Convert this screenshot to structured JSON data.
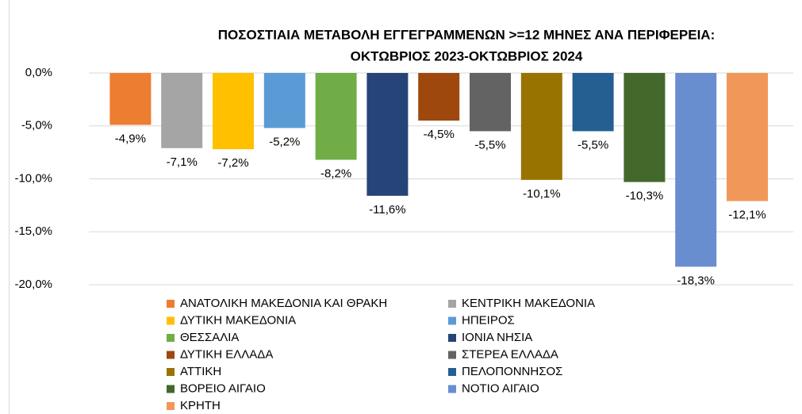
{
  "chart_data": {
    "type": "bar",
    "title": [
      "ΠΟΣΟΣΤΙΑΙΑ ΜΕΤΑΒΟΛΗ ΕΓΓΕΓΡΑΜΜΕΝΩΝ >=12 ΜΗΝΕΣ ΑΝΑ ΠΕΡΙΦΕΡΕΙΑ:",
      "ΟΚΤΩΒΡΙΟΣ 2023-ΟΚΤΩΒΡΙΟΣ 2024"
    ],
    "ylim": [
      -20,
      0
    ],
    "yticks": [
      {
        "value": 0,
        "label": "0,0%"
      },
      {
        "value": -5,
        "label": "-5,0%"
      },
      {
        "value": -10,
        "label": "-10,0%"
      },
      {
        "value": -15,
        "label": "-15,0%"
      },
      {
        "value": -20,
        "label": "-20,0%"
      }
    ],
    "grid": true,
    "legend": "bottom",
    "series": [
      {
        "name": "ΑΝΑΤΟΛΙΚΗ ΜΑΚΕΔΟΝΙΑ ΚΑΙ ΘΡΑΚΗ",
        "color": "#ED7D31",
        "values": [
          -4.9
        ],
        "value_labels": [
          "-4,9%"
        ]
      },
      {
        "name": "ΚΕΝΤΡΙΚΗ ΜΑΚΕΔΟΝΙΑ",
        "color": "#A5A5A5",
        "values": [
          -7.1
        ],
        "value_labels": [
          "-7,1%"
        ]
      },
      {
        "name": "ΔΥΤΙΚΗ ΜΑΚΕΔΟΝΙΑ",
        "color": "#FFC000",
        "values": [
          -7.2
        ],
        "value_labels": [
          "-7,2%"
        ]
      },
      {
        "name": "ΗΠΕΙΡΟΣ",
        "color": "#5B9BD5",
        "values": [
          -5.2
        ],
        "value_labels": [
          "-5,2%"
        ]
      },
      {
        "name": "ΘΕΣΣΑΛΙΑ",
        "color": "#70AD47",
        "values": [
          -8.2
        ],
        "value_labels": [
          "-8,2%"
        ]
      },
      {
        "name": "ΙΟΝΙΑ ΝΗΣΙΑ",
        "color": "#264478",
        "values": [
          -11.6
        ],
        "value_labels": [
          "-11,6%"
        ]
      },
      {
        "name": "ΔΥΤΙΚΗ ΕΛΛΑΔΑ",
        "color": "#9E480E",
        "values": [
          -4.5
        ],
        "value_labels": [
          "-4,5%"
        ]
      },
      {
        "name": "ΣΤΕΡΕΑ ΕΛΛΑΔΑ",
        "color": "#636363",
        "values": [
          -5.5
        ],
        "value_labels": [
          "-5,5%"
        ]
      },
      {
        "name": "ΑΤΤΙΚΗ",
        "color": "#997300",
        "values": [
          -10.1
        ],
        "value_labels": [
          "-10,1%"
        ]
      },
      {
        "name": "ΠΕΛΟΠΟΝΝΗΣΟΣ",
        "color": "#255E91",
        "values": [
          -5.5
        ],
        "value_labels": [
          "-5,5%"
        ]
      },
      {
        "name": "ΒΟΡΕΙΟ ΑΙΓΑΙΟ",
        "color": "#43682B",
        "values": [
          -10.3
        ],
        "value_labels": [
          "-10,3%"
        ]
      },
      {
        "name": "ΝΟΤΙΟ ΑΙΓΑΙΟ",
        "color": "#698ED0",
        "values": [
          -18.3
        ],
        "value_labels": [
          "-18,3%"
        ]
      },
      {
        "name": "ΚΡΗΤΗ",
        "color": "#F1975A",
        "values": [
          -12.1
        ],
        "value_labels": [
          "-12,1%"
        ]
      }
    ]
  }
}
